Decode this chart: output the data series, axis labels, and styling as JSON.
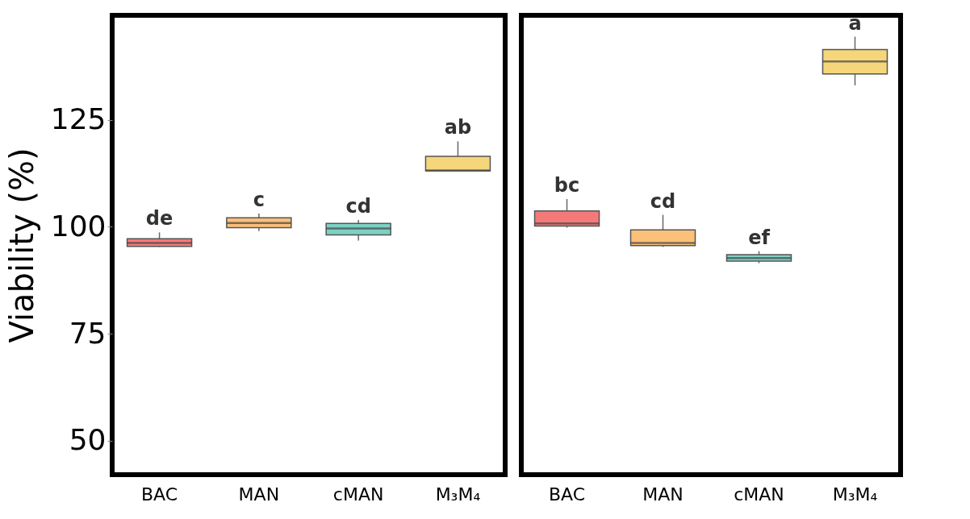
{
  "chart_data": [
    {
      "type": "box",
      "ylabel": "Viability (%)",
      "categories": [
        "BAC",
        "MAN",
        "cMAN",
        "M₃M₄"
      ],
      "colors": [
        "#f47a7a",
        "#fbc07a",
        "#7dd0c4",
        "#f5d67a"
      ],
      "boxes": [
        {
          "low": 95.3,
          "q1": 95.4,
          "median": 96.2,
          "q3": 97.2,
          "high": 98.7
        },
        {
          "low": 99.0,
          "q1": 99.8,
          "median": 100.9,
          "q3": 102.1,
          "high": 103.1
        },
        {
          "low": 96.8,
          "q1": 98.1,
          "median": 99.6,
          "q3": 100.8,
          "high": 101.6
        },
        {
          "low": 113.1,
          "q1": 113.1,
          "median": 113.2,
          "q3": 116.5,
          "high": 120.0
        }
      ],
      "ylim": [
        42,
        149.5
      ],
      "yticks": [
        50,
        75,
        100,
        125
      ],
      "annotations": [
        "de",
        "c",
        "cd",
        "ab"
      ]
    },
    {
      "type": "box",
      "categories": [
        "BAC",
        "MAN",
        "cMAN",
        "M₃M₄"
      ],
      "colors": [
        "#f47a7a",
        "#fbc07a",
        "#7dd0c4",
        "#f5d67a"
      ],
      "boxes": [
        {
          "low": 99.8,
          "q1": 100.2,
          "median": 100.8,
          "q3": 103.7,
          "high": 106.5
        },
        {
          "low": 95.3,
          "q1": 95.6,
          "median": 96.2,
          "q3": 99.3,
          "high": 102.8
        },
        {
          "low": 91.5,
          "q1": 92.0,
          "median": 92.7,
          "q3": 93.5,
          "high": 94.3
        },
        {
          "low": 133.1,
          "q1": 135.8,
          "median": 138.7,
          "q3": 141.5,
          "high": 144.5
        }
      ],
      "ylim": [
        42,
        149.5
      ],
      "yticks": [
        50,
        75,
        100,
        125
      ],
      "tick_labels": "x",
      "annotations": [
        "bc",
        "cd",
        "ef",
        "a"
      ]
    }
  ]
}
